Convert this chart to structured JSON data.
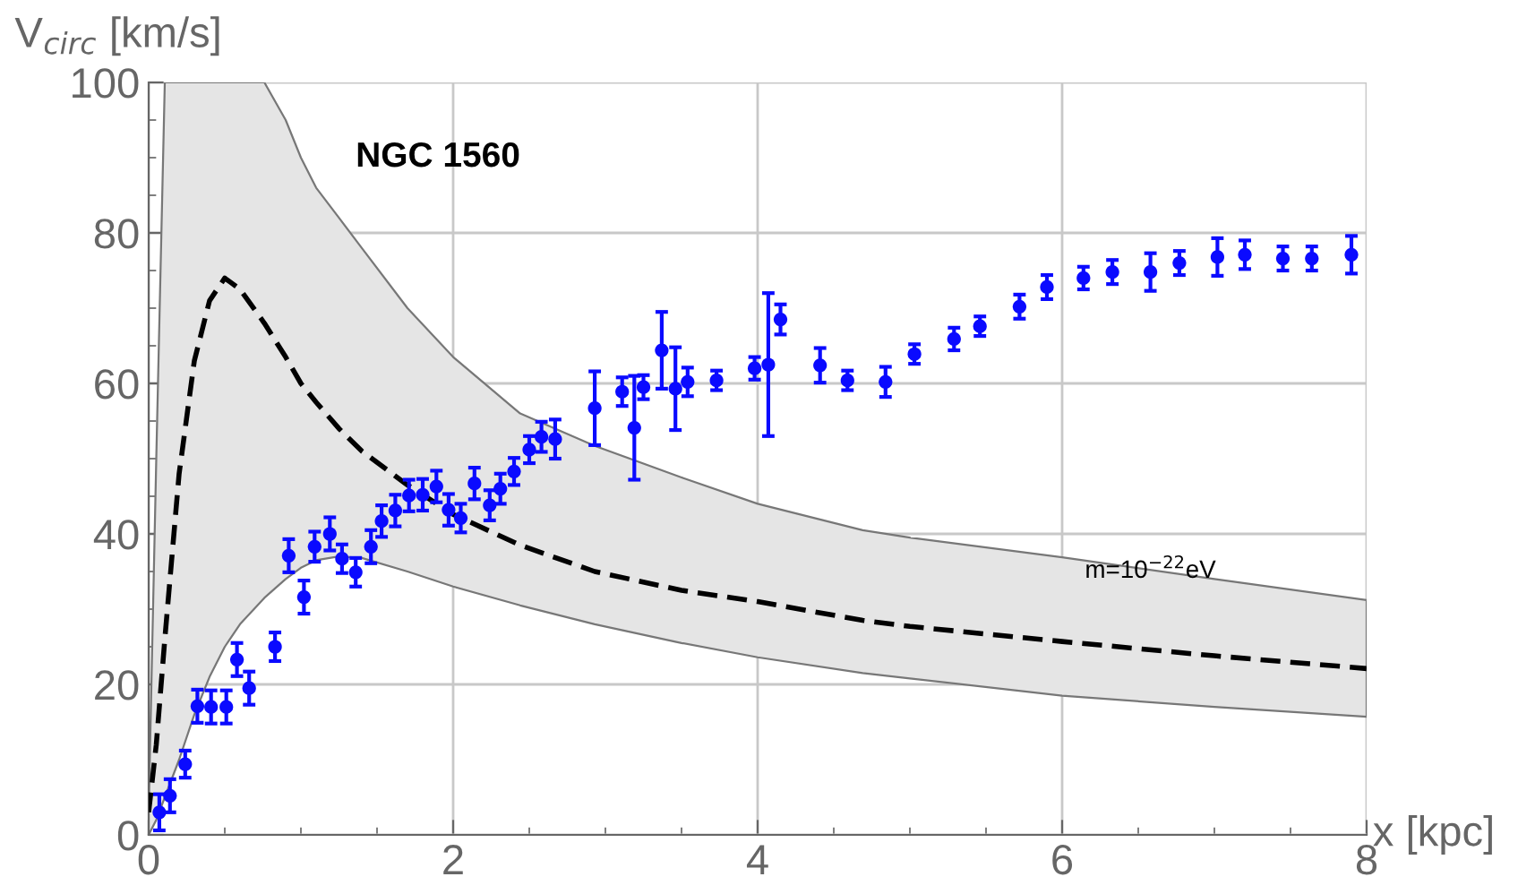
{
  "chart_data": {
    "type": "scatter",
    "title": "NGC 1560",
    "xlabel": "x [kpc]",
    "ylabel": "V$_{circ}$ [km/s]",
    "xlim": [
      0,
      8
    ],
    "xticks": [
      0,
      2,
      4,
      6,
      8
    ],
    "ylim": [
      0,
      100
    ],
    "yticks": [
      0,
      20,
      40,
      60,
      80,
      100
    ],
    "grid": true,
    "annotations": [
      {
        "text": "m=10$^{−22}$eV",
        "x": 6.58,
        "y": 35
      }
    ],
    "series": [
      {
        "type": "line",
        "color": "#000000",
        "line_style": "dashed",
        "marker": "none",
        "x": [
          0,
          0.05,
          0.106,
          0.2,
          0.3,
          0.4,
          0.5,
          0.6,
          0.76,
          0.9,
          1.0,
          1.1,
          1.25,
          1.4,
          1.7,
          2.0,
          2.44,
          2.93,
          3.5,
          4.0,
          4.69,
          5,
          6,
          7,
          8
        ],
        "values": [
          3,
          12,
          26,
          48,
          63,
          71,
          74,
          72.5,
          68,
          63.5,
          60,
          57.5,
          54,
          51,
          46.5,
          42.6,
          38.5,
          35,
          32.5,
          31,
          28.5,
          27.7,
          25.7,
          23.8,
          22.1
        ],
        "upper": [
          3,
          50,
          100,
          100,
          100,
          100,
          100,
          100,
          100,
          95,
          90,
          86,
          82,
          78,
          70,
          63.5,
          56,
          51.7,
          47.5,
          44,
          40.5,
          39.5,
          36.9,
          34,
          31.2
        ],
        "lower": [
          0,
          2,
          5,
          10,
          16,
          21,
          25,
          28,
          31.5,
          34,
          35.5,
          36.5,
          37,
          36.8,
          35,
          33,
          30.5,
          28,
          25.5,
          23.6,
          21.5,
          20.8,
          18.5,
          17,
          15.7
        ]
      },
      {
        "color": "#0a0aff",
        "marker": "circle",
        "x": [
          0.07,
          0.14,
          0.24,
          0.32,
          0.41,
          0.51,
          0.58,
          0.66,
          0.83,
          0.92,
          1.02,
          1.09,
          1.19,
          1.27,
          1.36,
          1.46,
          1.53,
          1.62,
          1.71,
          1.8,
          1.89,
          1.97,
          2.05,
          2.14,
          2.24,
          2.31,
          2.4,
          2.5,
          2.58,
          2.67,
          2.93,
          3.11,
          3.19,
          3.25,
          3.37,
          3.46,
          3.54,
          3.73,
          3.98,
          4.07,
          4.15,
          4.41,
          4.59,
          4.84,
          5.03,
          5.29,
          5.46,
          5.72,
          5.9,
          6.14,
          6.33,
          6.58,
          6.77,
          7.02,
          7.2,
          7.45,
          7.64,
          7.9
        ],
        "values": [
          3.0,
          5.2,
          9.4,
          17.1,
          17.0,
          17.0,
          23.3,
          19.5,
          25.0,
          37.1,
          31.6,
          38.3,
          40.0,
          36.7,
          34.9,
          38.3,
          41.7,
          43.1,
          45.1,
          45.2,
          46.3,
          43.2,
          42.1,
          46.7,
          43.8,
          46.0,
          48.3,
          51.2,
          52.9,
          52.6,
          56.7,
          58.9,
          54.1,
          59.5,
          64.4,
          59.3,
          60.2,
          60.4,
          62.0,
          62.5,
          68.5,
          62.4,
          60.4,
          60.2,
          63.9,
          65.9,
          67.6,
          70.2,
          72.8,
          74.0,
          74.8,
          74.8,
          76.0,
          76.8,
          77.1,
          76.6,
          76.6,
          77.1
        ],
        "errors": [
          2.4,
          2.2,
          1.8,
          2.2,
          2.2,
          2.2,
          2.2,
          2.2,
          1.9,
          2.2,
          2.2,
          2.0,
          2.2,
          1.9,
          1.9,
          2.2,
          2.1,
          2.1,
          2.1,
          2.1,
          2.1,
          2.1,
          1.9,
          2.1,
          2.0,
          2.0,
          1.8,
          1.8,
          2.0,
          2.6,
          4.9,
          1.9,
          6.9,
          1.6,
          5.1,
          5.5,
          1.9,
          1.3,
          1.5,
          9.5,
          2.0,
          2.3,
          1.3,
          2.0,
          1.3,
          1.5,
          1.3,
          1.6,
          1.6,
          1.5,
          1.6,
          2.5,
          1.6,
          2.5,
          1.9,
          1.6,
          1.6,
          2.5
        ]
      }
    ]
  }
}
